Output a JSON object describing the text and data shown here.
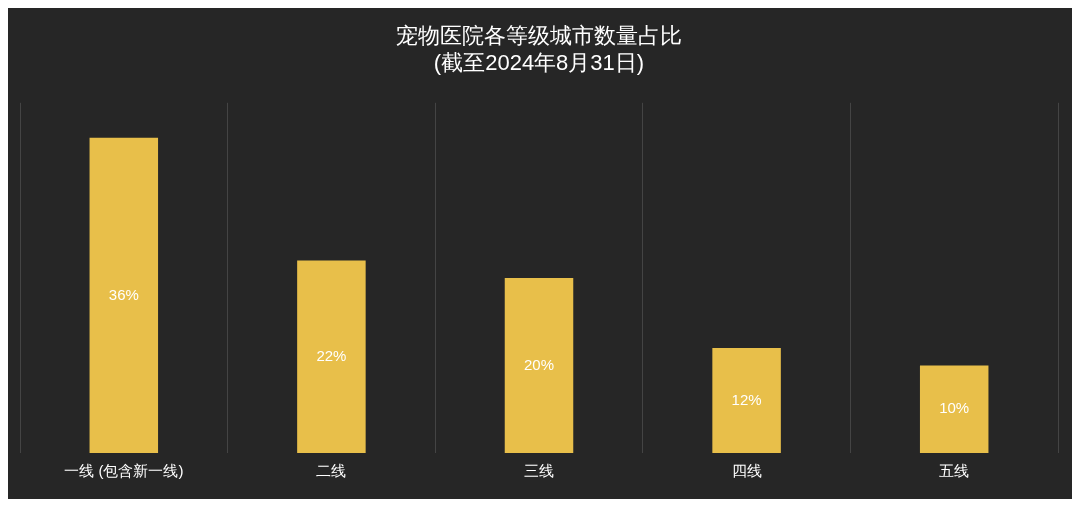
{
  "chart_data": {
    "type": "bar",
    "title": "宠物医院各等级城市数量占比\n(截至2024年8月31日)",
    "categories": [
      "一线 (包含新一线)",
      "二线",
      "三线",
      "四线",
      "五线"
    ],
    "values": [
      36,
      22,
      20,
      12,
      10
    ],
    "value_labels": [
      "36%",
      "22%",
      "20%",
      "12%",
      "10%"
    ],
    "color": "#e8bf4a",
    "grid": "x",
    "legend": false
  }
}
